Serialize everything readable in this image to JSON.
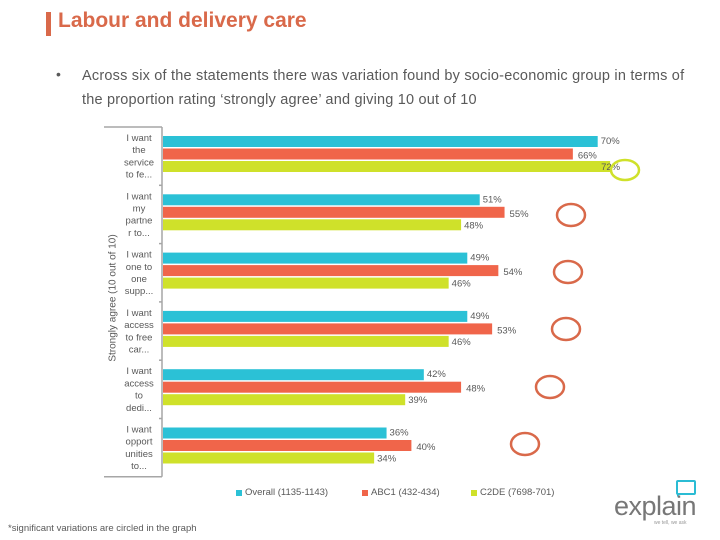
{
  "header": {
    "title": "Labour and delivery care",
    "bullet": "•",
    "intro": "Across six of the statements there was variation found by socio-economic group in terms of the proportion rating ‘strongly agree’ and giving 10 out of 10"
  },
  "colors": {
    "accent": "#d9694a",
    "overall": "#2bc1d6",
    "abc1": "#f0654a",
    "c2de": "#cfe12a",
    "circle_abc1": "#d9694a",
    "circle_c2de": "#cfe12a"
  },
  "chart_data": {
    "type": "bar",
    "orientation": "horizontal",
    "title": "",
    "xlabel": "",
    "ylabel": "Strongly agree (10 out of 10)",
    "xlim": [
      0,
      100
    ],
    "grid": false,
    "legend_position": "bottom",
    "categories": [
      [
        "I want",
        "the",
        "service",
        "to fe..."
      ],
      [
        "I want",
        "my",
        "partne",
        "r to..."
      ],
      [
        "I want",
        "one to",
        "one",
        "supp..."
      ],
      [
        "I want",
        "access",
        "to free",
        "car..."
      ],
      [
        "I want",
        "access",
        "to",
        "dedi..."
      ],
      [
        "I want",
        "opport",
        "unities",
        "to..."
      ]
    ],
    "series": [
      {
        "name": "Overall (1135-1143)",
        "key": "overall",
        "values": [
          70,
          51,
          49,
          49,
          42,
          36
        ],
        "labels": [
          "70%",
          "51%",
          "49%",
          "49%",
          "42%",
          "36%"
        ]
      },
      {
        "name": "ABC1 (432-434)",
        "key": "abc1",
        "values": [
          66,
          55,
          54,
          53,
          48,
          40
        ],
        "labels": [
          "66%",
          "55%",
          "54%",
          "53%",
          "48%",
          "40%"
        ]
      },
      {
        "name": "C2DE (7698-701)",
        "key": "c2de",
        "values": [
          72,
          48,
          46,
          46,
          39,
          34
        ],
        "labels": [
          "72%",
          "48%",
          "46%",
          "46%",
          "39%",
          "34%"
        ]
      }
    ],
    "significance_circles": [
      {
        "category_index": 0,
        "series": "c2de",
        "around_label": true
      },
      {
        "category_index": 1,
        "series": "abc1",
        "around_label": false
      },
      {
        "category_index": 2,
        "series": "abc1",
        "around_label": false
      },
      {
        "category_index": 3,
        "series": "abc1",
        "around_label": false
      },
      {
        "category_index": 4,
        "series": "abc1",
        "around_label": false
      },
      {
        "category_index": 5,
        "series": "abc1",
        "around_label": false
      }
    ]
  },
  "legend": [
    {
      "label": "Overall (1135-1143)",
      "key": "overall"
    },
    {
      "label": "ABC1 (432-434)",
      "key": "abc1"
    },
    {
      "label": "C2DE (7698-701)",
      "key": "c2de"
    }
  ],
  "footnote": "*significant variations are circled in the graph",
  "logo": {
    "text": "explain",
    "tagline": "we tell, we ask"
  }
}
